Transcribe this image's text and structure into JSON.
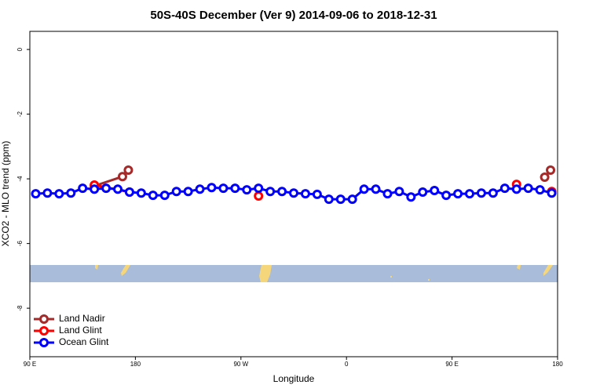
{
  "chart_data": {
    "type": "line",
    "title": "50S-40S December (Ver 9)   2014-09-06 to 2018-12-31",
    "x_label": "Longitude",
    "y_label": "XCO2 - MLO trend (ppm)",
    "xlim": [
      90,
      540
    ],
    "ylim": [
      -9.5,
      0.56
    ],
    "xticks": [
      {
        "value": 90,
        "label": "90 E"
      },
      180,
      {
        "value": 270,
        "label": "90 W"
      },
      {
        "value": 360,
        "label": "0"
      },
      {
        "value": 450,
        "label": "90 E"
      },
      {
        "value": 540,
        "label": "180"
      }
    ],
    "yticks": [
      0,
      -2,
      -4,
      -6,
      -8
    ],
    "legend_position": "bottom-left",
    "series": [
      {
        "name": "Land Nadir",
        "color": "#a52a2a",
        "x": [
          145,
          169,
          174,
          null,
          529,
          534
        ],
        "values": [
          -4.22,
          -3.93,
          -3.73,
          null,
          -3.95,
          -3.73
        ]
      },
      {
        "name": "Land Glint",
        "color": "#ff0000",
        "x": [
          145,
          175,
          235,
          285,
          335,
          505,
          515,
          535
        ],
        "values": [
          -4.19,
          -4.41,
          null,
          -4.53,
          null,
          -4.17,
          null,
          -4.39
        ]
      },
      {
        "name": "Ocean Glint",
        "color": "#0000ff",
        "x": [
          95,
          105,
          115,
          125,
          135,
          145,
          155,
          165,
          175,
          185,
          195,
          205,
          215,
          225,
          235,
          245,
          255,
          265,
          275,
          285,
          295,
          305,
          315,
          325,
          335,
          345,
          355,
          365,
          375,
          385,
          395,
          405,
          415,
          425,
          435,
          445,
          455,
          465,
          475,
          485,
          495,
          505,
          515,
          525,
          535
        ],
        "values": [
          -4.46,
          -4.44,
          -4.46,
          -4.44,
          -4.29,
          -4.32,
          -4.29,
          -4.32,
          -4.41,
          -4.44,
          -4.51,
          -4.51,
          -4.39,
          -4.39,
          -4.32,
          -4.27,
          -4.29,
          -4.29,
          -4.34,
          -4.29,
          -4.39,
          -4.39,
          -4.44,
          -4.46,
          -4.48,
          -4.63,
          -4.63,
          -4.63,
          -4.32,
          -4.32,
          -4.46,
          -4.39,
          -4.56,
          -4.41,
          -4.36,
          -4.51,
          -4.46,
          -4.46,
          -4.44,
          -4.44,
          -4.29,
          -4.32,
          -4.29,
          -4.34,
          -4.44
        ]
      }
    ]
  }
}
